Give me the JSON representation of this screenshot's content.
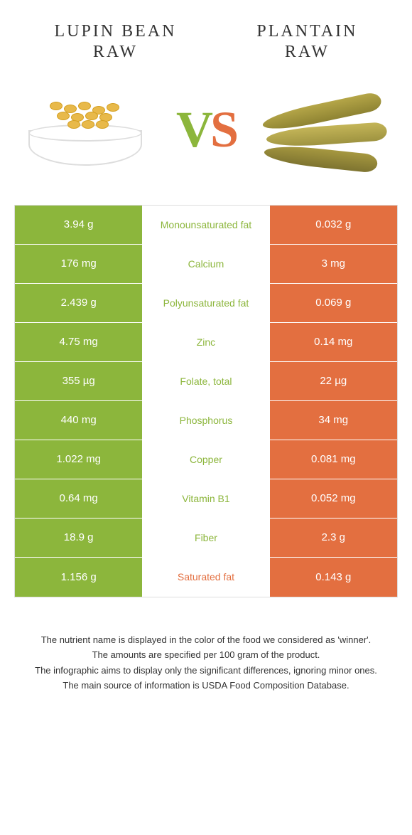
{
  "colors": {
    "left": "#8cb63c",
    "right": "#e36f40",
    "mid_bg": "#ffffff"
  },
  "food_left": {
    "line1": "LUPIN BEAN",
    "line2": "RAW"
  },
  "food_right": {
    "line1": "PLANTAIN",
    "line2": "RAW"
  },
  "vs": {
    "v": "V",
    "s": "S"
  },
  "rows": [
    {
      "left": "3.94 g",
      "mid": "Monounsaturated fat",
      "right": "0.032 g",
      "winner": "left"
    },
    {
      "left": "176 mg",
      "mid": "Calcium",
      "right": "3 mg",
      "winner": "left"
    },
    {
      "left": "2.439 g",
      "mid": "Polyunsaturated fat",
      "right": "0.069 g",
      "winner": "left"
    },
    {
      "left": "4.75 mg",
      "mid": "Zinc",
      "right": "0.14 mg",
      "winner": "left"
    },
    {
      "left": "355 µg",
      "mid": "Folate, total",
      "right": "22 µg",
      "winner": "left"
    },
    {
      "left": "440 mg",
      "mid": "Phosphorus",
      "right": "34 mg",
      "winner": "left"
    },
    {
      "left": "1.022 mg",
      "mid": "Copper",
      "right": "0.081 mg",
      "winner": "left"
    },
    {
      "left": "0.64 mg",
      "mid": "Vitamin B1",
      "right": "0.052 mg",
      "winner": "left"
    },
    {
      "left": "18.9 g",
      "mid": "Fiber",
      "right": "2.3 g",
      "winner": "left"
    },
    {
      "left": "1.156 g",
      "mid": "Saturated fat",
      "right": "0.143 g",
      "winner": "right"
    }
  ],
  "footer": [
    "The nutrient name is displayed in the color of the food we considered as 'winner'.",
    "The amounts are specified per 100 gram of the product.",
    "The infographic aims to display only the significant differences, ignoring minor ones.",
    "The main source of information is USDA Food Composition Database."
  ]
}
